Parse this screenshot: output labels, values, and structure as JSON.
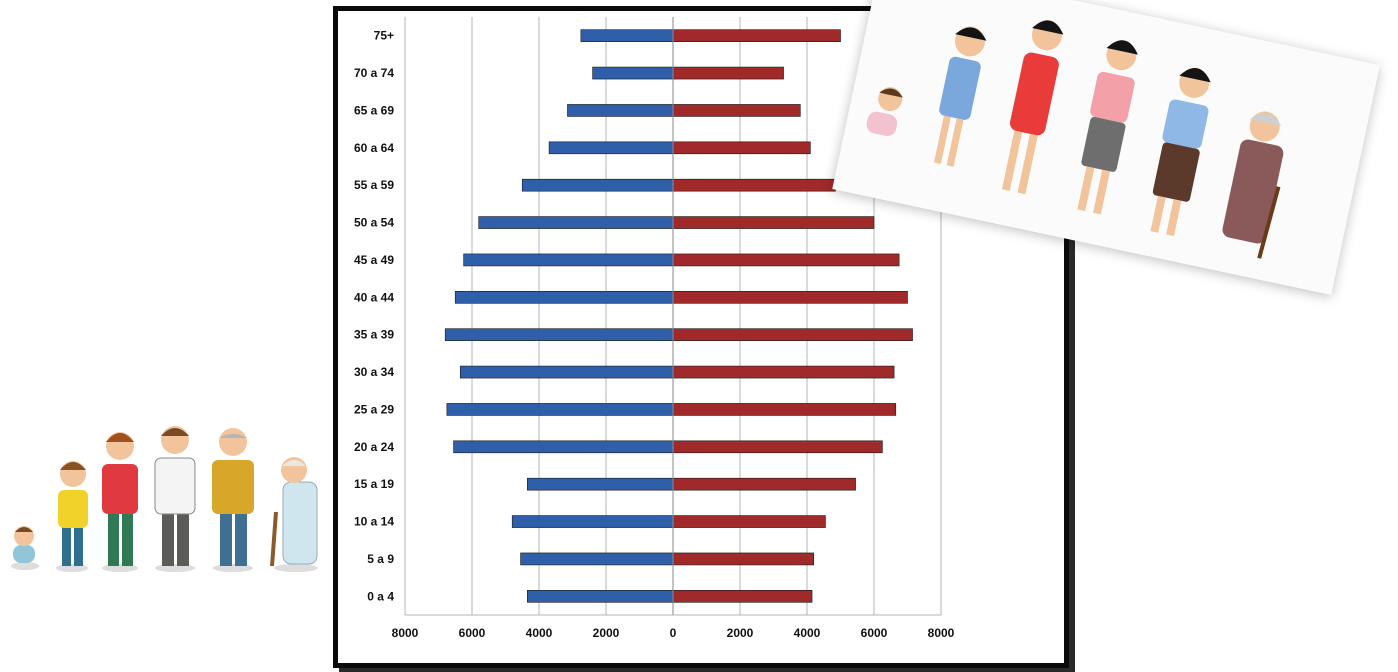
{
  "chart_data": {
    "type": "bar",
    "orientation": "horizontal",
    "layout": "population-pyramid",
    "categories": [
      "0 a 4",
      "5 a 9",
      "10 a 14",
      "15 a 19",
      "20 a 24",
      "25 a 29",
      "30 a 34",
      "35 a 39",
      "40 a 44",
      "45 a 49",
      "50 a 54",
      "55 a 59",
      "60 a 64",
      "65 a 69",
      "70 a 74",
      "75+"
    ],
    "series": [
      {
        "color": "#2f5fa8",
        "side": "left",
        "values": [
          4350,
          4550,
          4800,
          4350,
          6550,
          6750,
          6350,
          6800,
          6500,
          6250,
          5800,
          4500,
          3700,
          3150,
          2400,
          2750
        ]
      },
      {
        "color": "#a02a2a",
        "side": "right",
        "values": [
          4150,
          4200,
          4550,
          5450,
          6250,
          6650,
          6600,
          7150,
          7000,
          6750,
          6000,
          4850,
          4100,
          3800,
          3300,
          5000
        ]
      }
    ],
    "xlim": [
      -8000,
      8000
    ],
    "x_ticks": [
      "8000",
      "6000",
      "4000",
      "2000",
      "0",
      "2000",
      "4000",
      "6000",
      "8000"
    ],
    "grid": true,
    "legend": "none"
  },
  "illustrations": {
    "left": "men-ages-cartoon",
    "right": "women-ages-cartoon"
  }
}
